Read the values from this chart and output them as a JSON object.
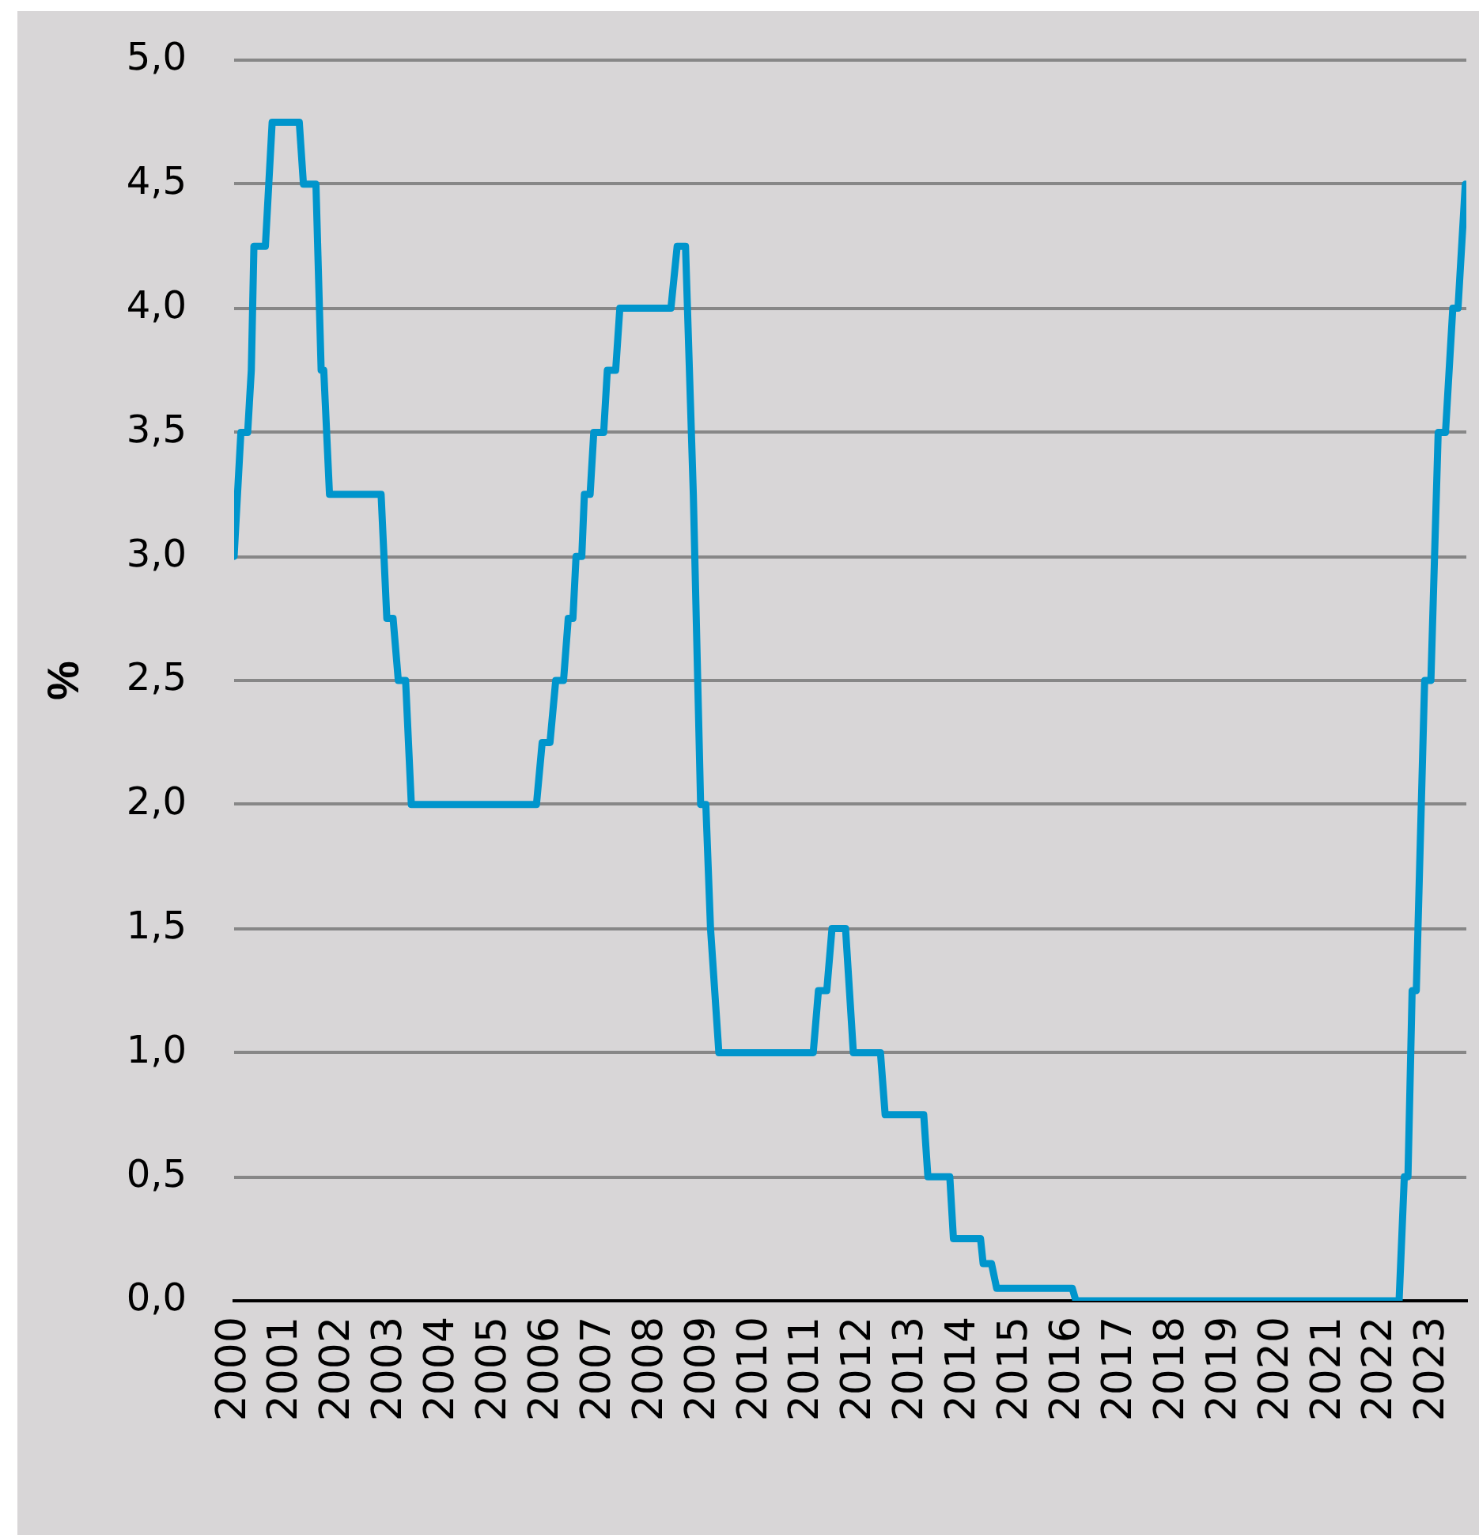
{
  "chart_data": {
    "type": "line",
    "ylabel": "%",
    "x": [
      2000.0,
      2000.13,
      2000.26,
      2000.33,
      2000.38,
      2000.6,
      2000.73,
      2001.25,
      2001.33,
      2001.57,
      2001.67,
      2001.72,
      2001.83,
      2002.82,
      2002.93,
      2003.05,
      2003.15,
      2003.29,
      2003.4,
      2005.8,
      2005.91,
      2006.06,
      2006.17,
      2006.32,
      2006.41,
      2006.5,
      2006.56,
      2006.67,
      2006.72,
      2006.83,
      2006.9,
      2007.09,
      2007.16,
      2007.32,
      2007.4,
      2008.38,
      2008.5,
      2008.66,
      2008.81,
      2008.95,
      2009.05,
      2009.14,
      2009.3,
      2011.11,
      2011.21,
      2011.37,
      2011.47,
      2011.73,
      2011.88,
      2012.4,
      2012.49,
      2013.23,
      2013.31,
      2013.73,
      2013.8,
      2014.32,
      2014.37,
      2014.53,
      2014.63,
      2016.08,
      2016.15,
      2022.35,
      2022.45,
      2022.52,
      2022.6,
      2022.68,
      2022.84,
      2022.96,
      2023.1,
      2023.24,
      2023.38,
      2023.48,
      2023.62
    ],
    "values": [
      3.0,
      3.5,
      3.5,
      3.75,
      4.25,
      4.25,
      4.75,
      4.75,
      4.5,
      4.5,
      3.75,
      3.75,
      3.25,
      3.25,
      2.75,
      2.75,
      2.5,
      2.5,
      2.0,
      2.0,
      2.25,
      2.25,
      2.5,
      2.5,
      2.75,
      2.75,
      3.0,
      3.0,
      3.25,
      3.25,
      3.5,
      3.5,
      3.75,
      3.75,
      4.0,
      4.0,
      4.25,
      4.25,
      3.25,
      2.0,
      2.0,
      1.5,
      1.0,
      1.0,
      1.25,
      1.25,
      1.5,
      1.5,
      1.0,
      1.0,
      0.75,
      0.75,
      0.5,
      0.5,
      0.25,
      0.25,
      0.15,
      0.15,
      0.05,
      0.05,
      0.0,
      0.0,
      0.5,
      0.5,
      1.25,
      1.25,
      2.5,
      2.5,
      3.5,
      3.5,
      4.0,
      4.0,
      4.5
    ],
    "color": "#0095cc",
    "xlim": [
      2000,
      2023.64
    ],
    "xticks": [
      2000,
      2001,
      2002,
      2003,
      2004,
      2005,
      2006,
      2007,
      2008,
      2009,
      2010,
      2011,
      2012,
      2013,
      2014,
      2015,
      2016,
      2017,
      2018,
      2019,
      2020,
      2021,
      2022,
      2023
    ],
    "ylim": [
      0,
      5
    ],
    "yticks": [
      {
        "value": 0,
        "label": "0,0"
      },
      {
        "value": 0.5,
        "label": "0,5"
      },
      {
        "value": 1,
        "label": "1,0"
      },
      {
        "value": 1.5,
        "label": "1,5"
      },
      {
        "value": 2,
        "label": "2,0"
      },
      {
        "value": 2.5,
        "label": "2,5"
      },
      {
        "value": 3,
        "label": "3,0"
      },
      {
        "value": 3.5,
        "label": "3,5"
      },
      {
        "value": 4,
        "label": "4,0"
      },
      {
        "value": 4.5,
        "label": "4,5"
      },
      {
        "value": 5,
        "label": "5,0"
      }
    ],
    "grid": "y",
    "line_style": "solid"
  }
}
